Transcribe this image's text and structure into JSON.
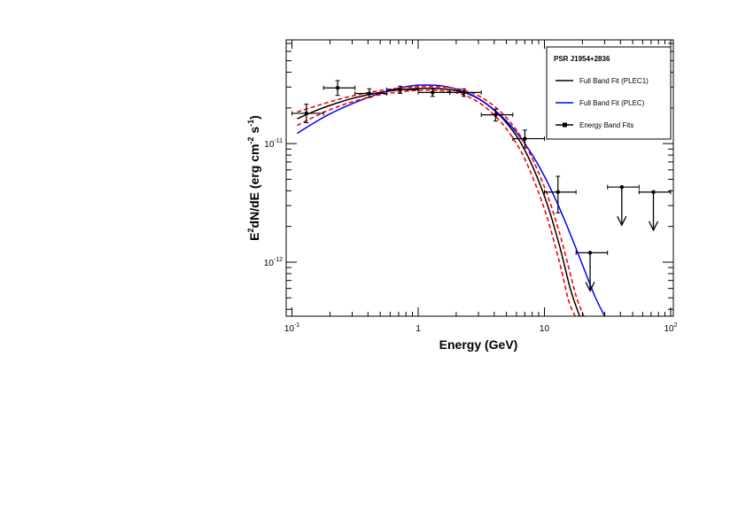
{
  "chart_data": {
    "type": "scatter",
    "title": "",
    "xlabel": "Energy (GeV)",
    "ylabel_parts": [
      "E",
      "2",
      "dN/dE (erg cm",
      "-2",
      " s",
      "-1",
      ")"
    ],
    "x_scale": "log",
    "y_scale": "log",
    "xlim": [
      0.09,
      105
    ],
    "ylim": [
      3.5e-13,
      7.5e-11
    ],
    "x_ticks": [
      {
        "value": 0.1,
        "base": "10",
        "exp": "-1"
      },
      {
        "value": 1,
        "base": "1",
        "exp": ""
      },
      {
        "value": 10,
        "base": "10",
        "exp": ""
      },
      {
        "value": 100,
        "base": "10",
        "exp": "2"
      }
    ],
    "y_ticks": [
      {
        "value": 1e-12,
        "base": "10",
        "exp": "-12"
      },
      {
        "value": 1e-11,
        "base": "10",
        "exp": "-11"
      }
    ],
    "grid": false,
    "legend": {
      "position": "top-right",
      "title": "PSR J1954+2836",
      "entries": [
        {
          "label": "Full Band Fit (PLEC1)",
          "color": "#000000",
          "marker": "line"
        },
        {
          "label": "Full Band Fit (PLEC)",
          "color": "#0000ff",
          "marker": "line"
        },
        {
          "label": "Energy Band Fits",
          "color": "#000000",
          "marker": "point"
        }
      ]
    },
    "series": [
      {
        "name": "Energy Band Fits",
        "kind": "points",
        "color": "#000000",
        "points": [
          {
            "x": 0.13,
            "xlo": 0.1,
            "xhi": 0.178,
            "y": 1.8e-11,
            "ylo": 1.5e-11,
            "yhi": 2.15e-11
          },
          {
            "x": 0.23,
            "xlo": 0.178,
            "xhi": 0.316,
            "y": 2.95e-11,
            "ylo": 2.55e-11,
            "yhi": 3.4e-11
          },
          {
            "x": 0.41,
            "xlo": 0.316,
            "xhi": 0.562,
            "y": 2.65e-11,
            "ylo": 2.45e-11,
            "yhi": 2.9e-11
          },
          {
            "x": 0.72,
            "xlo": 0.562,
            "xhi": 1.0,
            "y": 2.85e-11,
            "ylo": 2.65e-11,
            "yhi": 3.05e-11
          },
          {
            "x": 1.3,
            "xlo": 1.0,
            "xhi": 1.78,
            "y": 2.7e-11,
            "ylo": 2.5e-11,
            "yhi": 2.9e-11
          },
          {
            "x": 2.3,
            "xlo": 1.78,
            "xhi": 3.16,
            "y": 2.7e-11,
            "ylo": 2.5e-11,
            "yhi": 2.9e-11
          },
          {
            "x": 4.1,
            "xlo": 3.16,
            "xhi": 5.62,
            "y": 1.75e-11,
            "ylo": 1.55e-11,
            "yhi": 1.95e-11
          },
          {
            "x": 7.0,
            "xlo": 5.62,
            "xhi": 10.0,
            "y": 1.1e-11,
            "ylo": 9.2e-12,
            "yhi": 1.3e-11
          },
          {
            "x": 12.8,
            "xlo": 10.0,
            "xhi": 17.8,
            "y": 3.9e-12,
            "ylo": 2.6e-12,
            "yhi": 5.3e-12
          }
        ]
      },
      {
        "name": "Upper limits",
        "kind": "upper_limits",
        "color": "#000000",
        "points": [
          {
            "x": 23.0,
            "xlo": 17.8,
            "xhi": 31.6,
            "y": 1.2e-12
          },
          {
            "x": 41.0,
            "xlo": 31.6,
            "xhi": 56.2,
            "y": 4.3e-12
          },
          {
            "x": 73.0,
            "xlo": 56.2,
            "xhi": 100.0,
            "y": 3.9e-12
          }
        ]
      },
      {
        "name": "Full Band Fit (PLEC1)",
        "kind": "curve",
        "color": "#000000",
        "dashed": false,
        "points": [
          {
            "x": 0.11,
            "y": 1.62e-11
          },
          {
            "x": 0.15,
            "y": 1.87e-11
          },
          {
            "x": 0.2,
            "y": 2.1e-11
          },
          {
            "x": 0.3,
            "y": 2.4e-11
          },
          {
            "x": 0.5,
            "y": 2.7e-11
          },
          {
            "x": 0.8,
            "y": 2.87e-11
          },
          {
            "x": 1.2,
            "y": 2.93e-11
          },
          {
            "x": 1.8,
            "y": 2.85e-11
          },
          {
            "x": 2.5,
            "y": 2.62e-11
          },
          {
            "x": 3.5,
            "y": 2.15e-11
          },
          {
            "x": 5.0,
            "y": 1.5e-11
          },
          {
            "x": 7.0,
            "y": 8.8e-12
          },
          {
            "x": 10.0,
            "y": 3.6e-12
          },
          {
            "x": 13.0,
            "y": 1.45e-12
          },
          {
            "x": 16.0,
            "y": 6e-13
          },
          {
            "x": 19.0,
            "y": 3.5e-13
          }
        ]
      },
      {
        "name": "Full Band Fit (PLEC)",
        "kind": "curve",
        "color": "#0000ff",
        "dashed": false,
        "points": [
          {
            "x": 0.11,
            "y": 1.22e-11
          },
          {
            "x": 0.15,
            "y": 1.5e-11
          },
          {
            "x": 0.2,
            "y": 1.78e-11
          },
          {
            "x": 0.3,
            "y": 2.17e-11
          },
          {
            "x": 0.5,
            "y": 2.66e-11
          },
          {
            "x": 0.8,
            "y": 3.02e-11
          },
          {
            "x": 1.1,
            "y": 3.12e-11
          },
          {
            "x": 1.6,
            "y": 3.05e-11
          },
          {
            "x": 2.5,
            "y": 2.65e-11
          },
          {
            "x": 3.5,
            "y": 2.15e-11
          },
          {
            "x": 5.0,
            "y": 1.55e-11
          },
          {
            "x": 7.0,
            "y": 1e-11
          },
          {
            "x": 10.0,
            "y": 5.3e-12
          },
          {
            "x": 14.0,
            "y": 2.45e-12
          },
          {
            "x": 20.0,
            "y": 9.5e-13
          },
          {
            "x": 25.0,
            "y": 5.2e-13
          },
          {
            "x": 30.0,
            "y": 3.5e-13
          }
        ]
      },
      {
        "name": "PLEC1 band upper",
        "kind": "curve",
        "color": "#ff0000",
        "dashed": true,
        "points": [
          {
            "x": 0.11,
            "y": 1.85e-11
          },
          {
            "x": 0.15,
            "y": 2.05e-11
          },
          {
            "x": 0.2,
            "y": 2.25e-11
          },
          {
            "x": 0.3,
            "y": 2.52e-11
          },
          {
            "x": 0.5,
            "y": 2.8e-11
          },
          {
            "x": 0.8,
            "y": 2.98e-11
          },
          {
            "x": 1.2,
            "y": 3.03e-11
          },
          {
            "x": 1.8,
            "y": 2.96e-11
          },
          {
            "x": 2.5,
            "y": 2.75e-11
          },
          {
            "x": 3.5,
            "y": 2.3e-11
          },
          {
            "x": 5.0,
            "y": 1.65e-11
          },
          {
            "x": 7.0,
            "y": 1e-11
          },
          {
            "x": 10.0,
            "y": 4.3e-12
          },
          {
            "x": 13.0,
            "y": 1.85e-12
          },
          {
            "x": 16.0,
            "y": 8e-13
          },
          {
            "x": 18.0,
            "y": 5e-13
          },
          {
            "x": 20.5,
            "y": 3.5e-13
          }
        ]
      },
      {
        "name": "PLEC1 band lower",
        "kind": "curve",
        "color": "#ff0000",
        "dashed": true,
        "points": [
          {
            "x": 0.11,
            "y": 1.42e-11
          },
          {
            "x": 0.15,
            "y": 1.68e-11
          },
          {
            "x": 0.2,
            "y": 1.93e-11
          },
          {
            "x": 0.3,
            "y": 2.25e-11
          },
          {
            "x": 0.5,
            "y": 2.58e-11
          },
          {
            "x": 0.8,
            "y": 2.76e-11
          },
          {
            "x": 1.2,
            "y": 2.83e-11
          },
          {
            "x": 1.8,
            "y": 2.74e-11
          },
          {
            "x": 2.5,
            "y": 2.48e-11
          },
          {
            "x": 3.5,
            "y": 1.98e-11
          },
          {
            "x": 5.0,
            "y": 1.33e-11
          },
          {
            "x": 7.0,
            "y": 7.4e-12
          },
          {
            "x": 10.0,
            "y": 2.8e-12
          },
          {
            "x": 13.0,
            "y": 1.05e-12
          },
          {
            "x": 15.5,
            "y": 4.8e-13
          },
          {
            "x": 17.5,
            "y": 3.5e-13
          }
        ]
      }
    ]
  }
}
